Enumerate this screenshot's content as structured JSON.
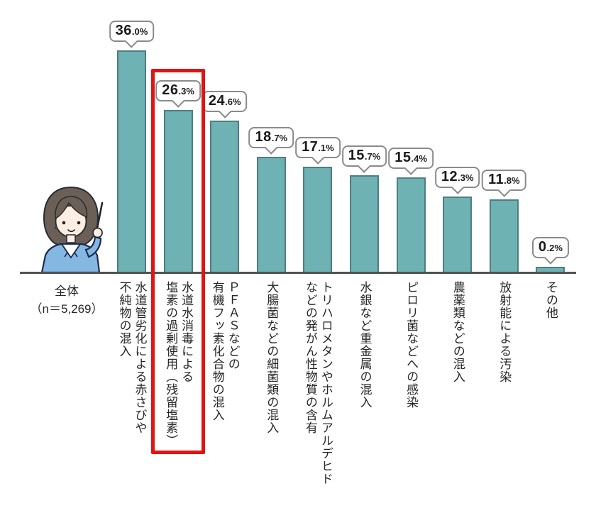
{
  "chart_data": {
    "type": "bar",
    "title": "",
    "group_label": "全体\n（n＝5,269）",
    "unit": "%",
    "categories": [
      "水道管劣化による赤さびや\n不純物の混入",
      "水道水消毒による\n塩素の過剰使用（残留塩素）",
      "ＰＦＡＳなどの\n有機フッ素化合物の混入",
      "大腸菌などの細菌類の混入",
      "トリハロメタンやホルムアルデヒド\nなどの発がん性物質の含有",
      "水銀など重金属の混入",
      "ピロリ菌などへの感染",
      "農薬類などの混入",
      "放射能による汚染",
      "その他"
    ],
    "values": [
      36.0,
      26.3,
      24.6,
      18.7,
      17.1,
      15.7,
      15.4,
      12.3,
      11.8,
      0.2
    ],
    "value_labels": [
      "36.0%",
      "26.3%",
      "24.6%",
      "18.7%",
      "17.1%",
      "15.7%",
      "15.4%",
      "12.3%",
      "11.8%",
      "0.2%"
    ],
    "highlight_index": 1,
    "highlighted_category": "水道水消毒による塩素の過剰使用（残留塩素）",
    "ylim": [
      0,
      40
    ],
    "grid": false,
    "legend": false,
    "bar_orientation": "vertical",
    "colors": {
      "bar_fill": "#6FB2B4",
      "bar_border": "#4D7E80",
      "axis_line": "#515151",
      "highlight_box": "#E01414",
      "bubble_border": "#8A8A8A",
      "text": "#262626"
    }
  },
  "illustration": {
    "description": "woman presenter with pointer stick",
    "jacket_color": "#85B7E3",
    "hair_color": "#6A6058",
    "skin_color": "#FDEEE3"
  }
}
